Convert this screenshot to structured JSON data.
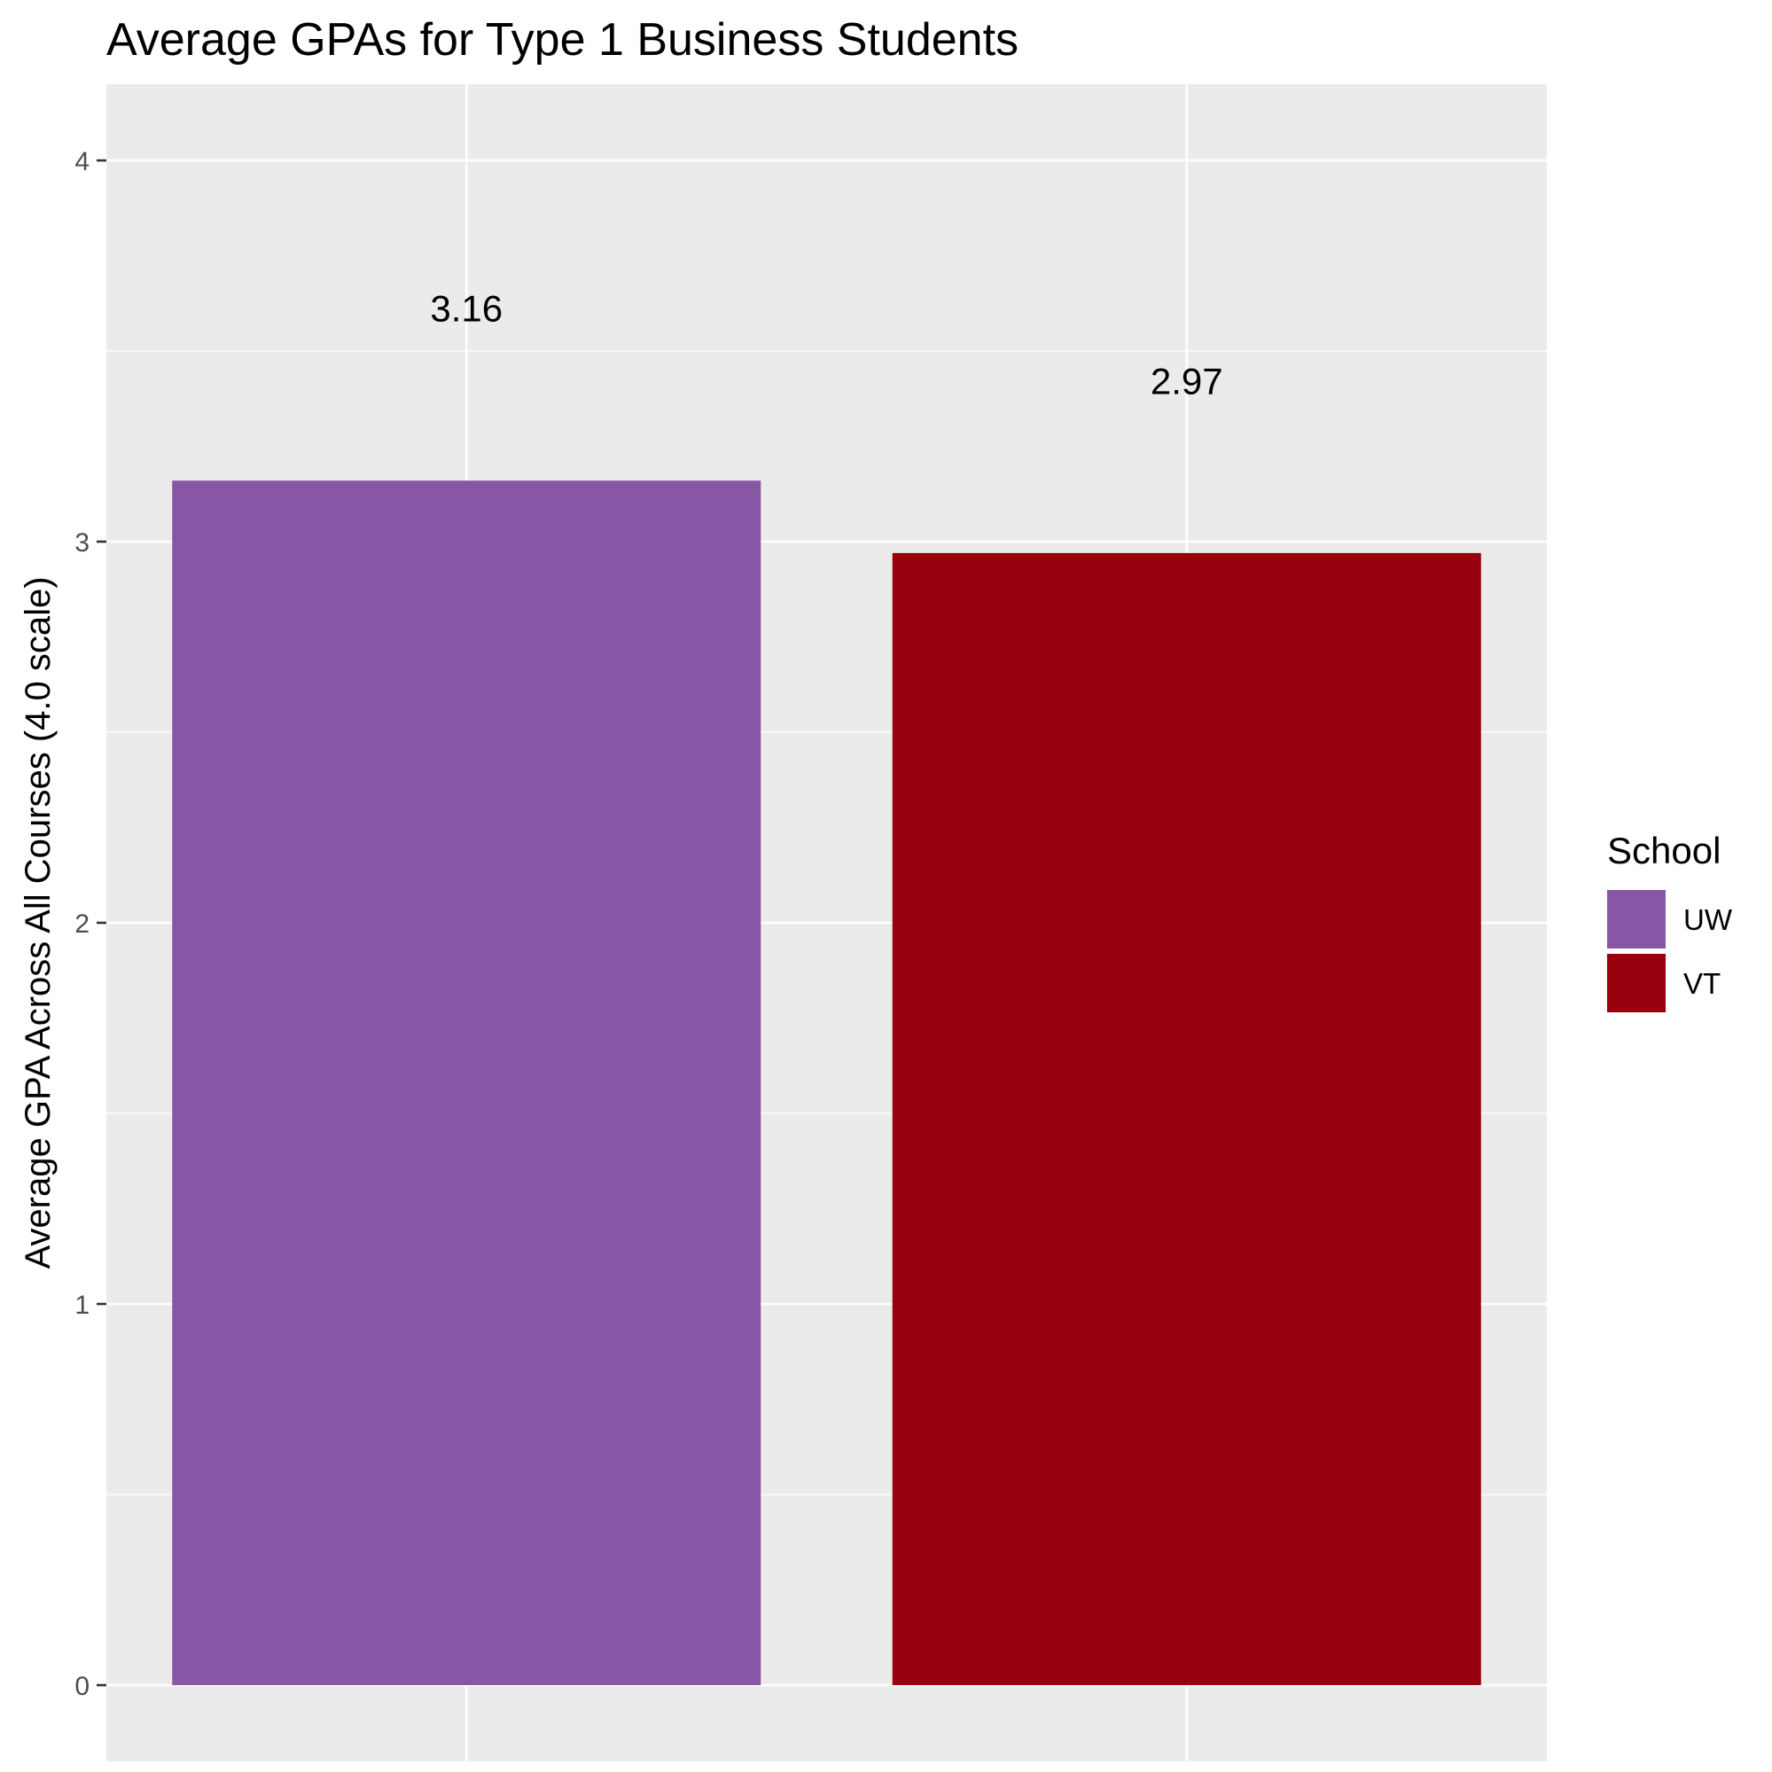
{
  "chart_data": {
    "type": "bar",
    "title": "Average GPAs for Type 1 Business Students",
    "xlabel": "",
    "ylabel": "Average GPA Across All Courses (4.0 scale)",
    "categories": [
      "UW",
      "VT"
    ],
    "values": [
      3.16,
      2.97
    ],
    "value_labels": [
      "3.16",
      "2.97"
    ],
    "colors": [
      "#8757A5",
      "#98000D"
    ],
    "ylim": [
      -0.2,
      4.2
    ],
    "yticks": [
      0,
      1,
      2,
      3,
      4
    ],
    "ytick_labels": [
      "0",
      "1",
      "2",
      "3",
      "4"
    ],
    "grid": true,
    "legend": {
      "title": "School",
      "position": "right",
      "entries": [
        {
          "label": "UW",
          "color": "#8757A5"
        },
        {
          "label": "VT",
          "color": "#98000D"
        }
      ]
    }
  }
}
